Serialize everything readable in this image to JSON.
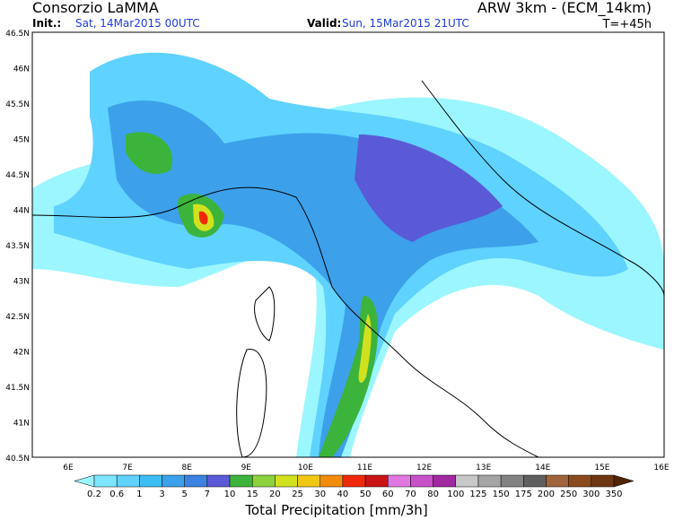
{
  "header": {
    "left_title": "Consorzio LaMMA",
    "right_title": "ARW 3km - (ECM_14km)",
    "init_label": "Init.:",
    "init_value": "Sat, 14Mar2015 00UTC",
    "valid_label": "Valid:",
    "valid_value": "Sun, 15Mar2015 21UTC",
    "lead_time": "T=+45h"
  },
  "map": {
    "lat_labels": [
      "46.5N",
      "46N",
      "45.5N",
      "45N",
      "44.5N",
      "44N",
      "43.5N",
      "43N",
      "42.5N",
      "42N",
      "41.5N",
      "41N",
      "40.5N"
    ],
    "lon_labels": [
      "6E",
      "7E",
      "8E",
      "9E",
      "10E",
      "11E",
      "12E",
      "13E",
      "14E",
      "15E",
      "16E"
    ]
  },
  "legend": {
    "title": "Total Precipitation [mm/3h]",
    "labels": [
      "0.2",
      "0.6",
      "1",
      "3",
      "5",
      "7",
      "10",
      "15",
      "20",
      "25",
      "30",
      "40",
      "50",
      "60",
      "70",
      "80",
      "100",
      "125",
      "150",
      "175",
      "200",
      "250",
      "300",
      "350"
    ],
    "colors": [
      "#9cf6ff",
      "#7de6ff",
      "#5fd2ff",
      "#3cbef5",
      "#3ca0eb",
      "#3c82e1",
      "#5a5ad7",
      "#3cb43c",
      "#8cd23c",
      "#d2e11e",
      "#f0c814",
      "#f08c0a",
      "#f0280a",
      "#c81414",
      "#e178e1",
      "#c850c8",
      "#a028a0",
      "#c8c8c8",
      "#a5a5a5",
      "#828282",
      "#5f5f5f",
      "#a0643c",
      "#8c4b1e",
      "#6e3714",
      "#502305"
    ]
  }
}
